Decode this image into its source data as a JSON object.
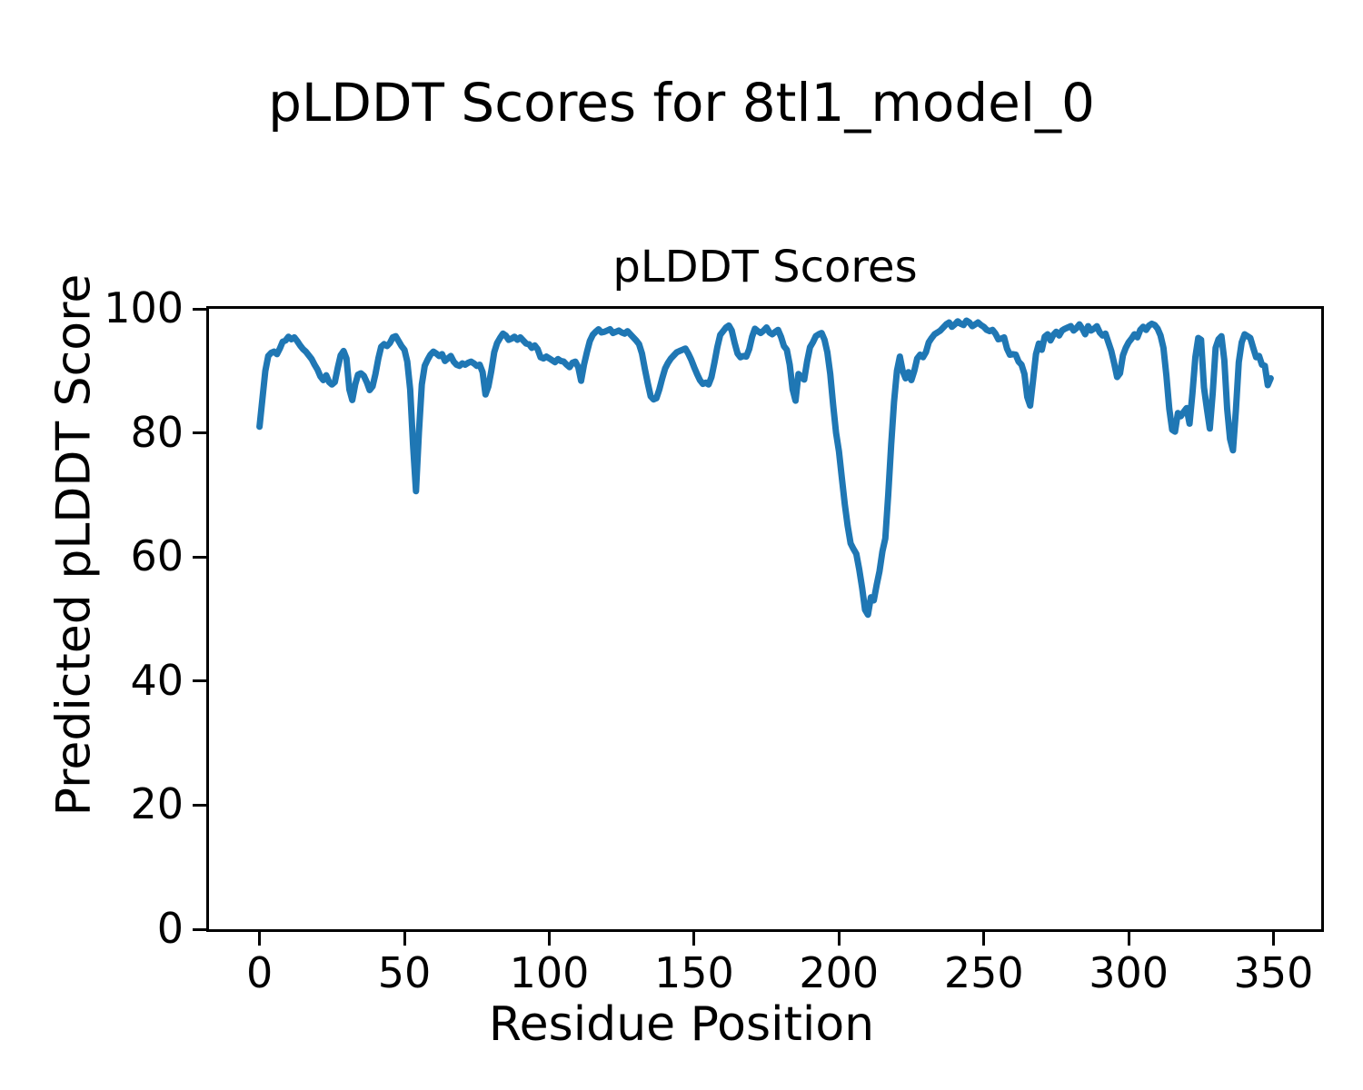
{
  "figure": {
    "suptitle": "pLDDT Scores for 8tl1_model_0",
    "axes_title": "pLDDT Scores",
    "xlabel": "Residue Position",
    "ylabel": "Predicted pLDDT Score"
  },
  "chart_data": {
    "type": "line",
    "title": "pLDDT Scores",
    "suptitle": "pLDDT Scores for 8tl1_model_0",
    "xlabel": "Residue Position",
    "ylabel": "Predicted pLDDT Score",
    "grid": false,
    "legend_position": "none",
    "line_color": "#1f77b4",
    "line_width": 7,
    "background_color": "#ffffff",
    "spine_color": "#000000",
    "xlim": [
      -17.45,
      366.45
    ],
    "ylim": [
      0,
      100
    ],
    "x_ticks": [
      0,
      50,
      100,
      150,
      200,
      250,
      300,
      350
    ],
    "y_ticks": [
      0,
      20,
      40,
      60,
      80,
      100
    ],
    "series": [
      {
        "name": "pLDDT",
        "x_start": 0,
        "x_step": 1,
        "values": [
          81.0,
          85.5,
          90.0,
          92.4,
          92.9,
          93.1,
          92.7,
          93.6,
          94.7,
          94.9,
          95.5,
          95.1,
          95.4,
          94.8,
          94.1,
          93.5,
          93.1,
          92.5,
          91.9,
          91.0,
          90.2,
          89.1,
          88.5,
          89.3,
          88.2,
          87.8,
          88.2,
          90.5,
          92.5,
          93.2,
          92.0,
          87.0,
          85.3,
          87.8,
          89.4,
          89.6,
          89.2,
          88.2,
          86.9,
          87.5,
          89.5,
          92.0,
          93.9,
          94.3,
          94.0,
          94.5,
          95.4,
          95.6,
          94.8,
          94.0,
          93.4,
          91.5,
          87.0,
          78.0,
          70.6,
          80.0,
          87.8,
          90.8,
          91.8,
          92.6,
          93.1,
          92.8,
          92.4,
          92.7,
          91.6,
          92.0,
          92.4,
          91.5,
          91.0,
          90.8,
          91.2,
          91.0,
          91.3,
          91.5,
          91.2,
          90.8,
          91.0,
          89.8,
          86.2,
          87.5,
          90.0,
          93.0,
          94.5,
          95.3,
          96.0,
          95.7,
          95.0,
          95.2,
          95.5,
          95.0,
          95.4,
          94.9,
          94.4,
          94.3,
          93.7,
          94.1,
          93.5,
          92.2,
          92.0,
          92.3,
          92.0,
          91.7,
          91.4,
          91.9,
          91.6,
          91.5,
          91.0,
          90.6,
          91.3,
          91.5,
          90.6,
          88.4,
          91.0,
          93.0,
          94.8,
          95.8,
          96.3,
          96.7,
          96.2,
          96.3,
          96.5,
          96.7,
          96.1,
          96.3,
          96.5,
          96.2,
          96.0,
          96.4,
          95.9,
          95.4,
          94.9,
          94.3,
          92.8,
          90.3,
          88.0,
          85.9,
          85.4,
          85.6,
          87.0,
          88.8,
          90.4,
          91.3,
          92.0,
          92.5,
          93.0,
          93.2,
          93.4,
          93.6,
          92.8,
          91.8,
          90.6,
          89.5,
          88.5,
          87.9,
          88.1,
          87.8,
          89.0,
          91.3,
          93.8,
          95.8,
          96.4,
          97.0,
          97.3,
          96.5,
          94.5,
          92.8,
          92.2,
          92.4,
          92.3,
          93.5,
          95.5,
          96.8,
          96.4,
          96.1,
          96.5,
          97.0,
          96.2,
          95.9,
          96.3,
          96.6,
          95.5,
          94.0,
          93.4,
          91.0,
          87.0,
          85.2,
          89.5,
          89.0,
          88.6,
          91.5,
          93.8,
          94.6,
          95.6,
          95.9,
          96.1,
          95.0,
          93.0,
          89.5,
          84.5,
          80.0,
          77.0,
          72.7,
          68.5,
          65.0,
          62.2,
          61.3,
          60.5,
          58.0,
          55.0,
          51.5,
          50.7,
          53.5,
          53.0,
          55.5,
          57.7,
          60.9,
          63.0,
          70.0,
          78.0,
          85.0,
          90.0,
          92.3,
          90.0,
          88.8,
          89.8,
          88.5,
          90.0,
          92.0,
          92.6,
          92.2,
          93.0,
          94.6,
          95.3,
          95.9,
          96.2,
          96.5,
          97.0,
          97.5,
          97.8,
          97.1,
          97.5,
          98.0,
          97.6,
          97.4,
          98.1,
          97.8,
          97.2,
          97.5,
          97.8,
          97.4,
          97.1,
          96.6,
          96.4,
          96.6,
          96.0,
          95.1,
          95.2,
          95.4,
          93.6,
          92.6,
          92.7,
          92.6,
          91.5,
          91.0,
          89.5,
          85.8,
          84.4,
          88.5,
          92.7,
          94.4,
          93.4,
          95.5,
          95.9,
          94.9,
          95.8,
          96.3,
          95.7,
          96.5,
          96.8,
          97.0,
          97.2,
          96.5,
          96.9,
          97.5,
          96.8,
          95.9,
          97.2,
          96.5,
          96.8,
          97.2,
          96.2,
          95.7,
          96.0,
          94.6,
          93.2,
          91.2,
          89.0,
          89.6,
          92.5,
          93.7,
          94.6,
          95.2,
          95.9,
          95.4,
          96.6,
          97.1,
          96.6,
          97.3,
          97.6,
          97.4,
          96.8,
          95.7,
          93.7,
          89.3,
          83.9,
          80.5,
          80.2,
          83.2,
          82.7,
          83.4,
          84.0,
          81.5,
          86.4,
          92.2,
          95.3,
          95.0,
          87.3,
          83.9,
          80.7,
          86.4,
          93.7,
          95.1,
          95.6,
          91.7,
          83.9,
          79.0,
          77.2,
          83.6,
          91.4,
          94.6,
          95.9,
          95.6,
          95.3,
          93.7,
          92.2,
          92.4,
          91.0,
          90.8,
          87.7,
          88.8
        ]
      }
    ]
  }
}
